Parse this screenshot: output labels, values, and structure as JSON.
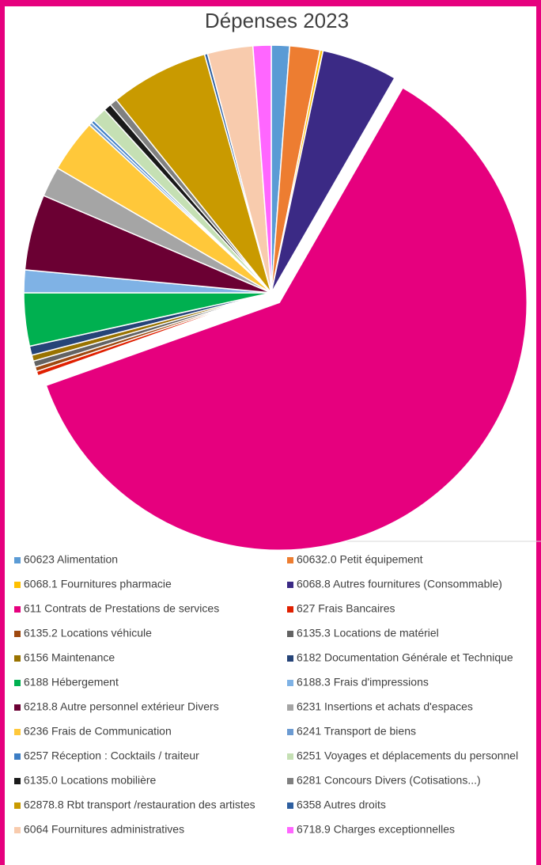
{
  "chart_data": {
    "type": "pie",
    "title": "Dépenses 2023",
    "categories": [
      "60623 Alimentation",
      "60632.0 Petit équipement",
      "6068.1 Fournitures pharmacie",
      "6068.8 Autres fournitures (Consommable)",
      "611 Contrats de Prestations de services",
      "627 Frais Bancaires",
      "6135.2 Locations véhicule",
      "6135.3 Locations de matériel",
      "6156 Maintenance",
      "6182 Documentation Générale et Technique",
      "6188 Hébergement",
      "6188.3 Frais d'impressions",
      "6218.8 Autre personnel extérieur Divers",
      "6231 Insertions et achats d'espaces",
      "6236 Frais de Communication",
      "6241 Transport de biens",
      "6257 Réception : Cocktails / traiteur",
      "6251 Voyages et déplacements du personnel",
      "6135.0 Locations mobilière",
      "6281 Concours Divers (Cotisations...)",
      "62878.8 Rbt transport /restauration des artistes",
      "6358 Autres droits",
      "6064 Fournitures administratives",
      "6718.9 Charges exceptionnelles"
    ],
    "values": [
      1.2,
      2.0,
      0.2,
      5.0,
      62.0,
      0.3,
      0.3,
      0.4,
      0.4,
      0.6,
      3.5,
      1.5,
      5.0,
      2.0,
      3.5,
      0.2,
      0.2,
      1.0,
      0.5,
      0.5,
      6.5,
      0.2,
      3.0,
      1.2
    ],
    "colors": [
      "#5B9BD5",
      "#ED7D31",
      "#FFC000",
      "#3B2A85",
      "#E6007E",
      "#E02000",
      "#9E480E",
      "#636363",
      "#997300",
      "#264478",
      "#00B050",
      "#7FB2E5",
      "#6B0033",
      "#A5A5A5",
      "#FFC83A",
      "#6C9BD2",
      "#3C7DC4",
      "#C5E0B4",
      "#1A1A1A",
      "#808080",
      "#C99A00",
      "#2E5FA0",
      "#F8CBAD",
      "#FF66FF"
    ],
    "exploded": [
      "611 Contrats de Prestations de services"
    ]
  }
}
